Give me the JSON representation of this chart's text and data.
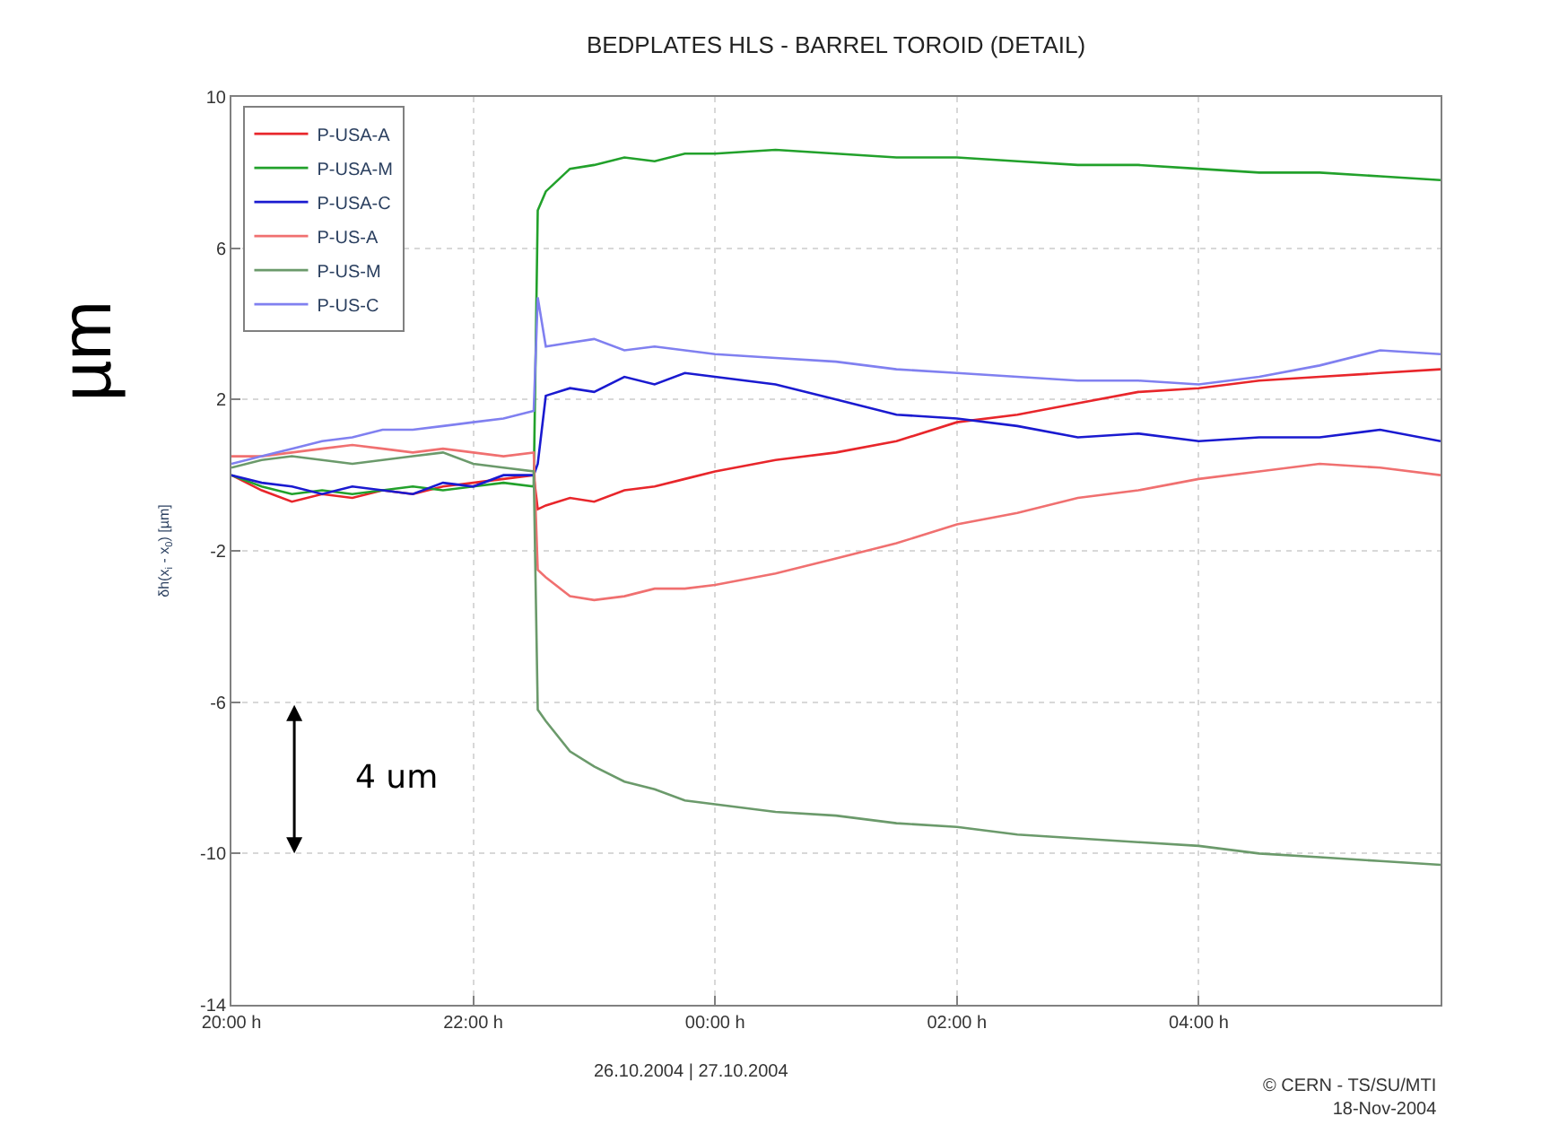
{
  "chart_data": {
    "type": "line",
    "title": "BEDPLATES HLS - BARREL TOROID (DETAIL)",
    "ylabel": "δh(x$_{i}$ - x$_{0}$) [µm]",
    "x": [
      "2004-10-26T20:00",
      "2004-10-26T20:15",
      "2004-10-26T20:30",
      "2004-10-26T20:45",
      "2004-10-26T21:00",
      "2004-10-26T21:15",
      "2004-10-26T21:30",
      "2004-10-26T21:45",
      "2004-10-26T22:00",
      "2004-10-26T22:15",
      "2004-10-26T22:30",
      "2004-10-26T22:32",
      "2004-10-26T22:36",
      "2004-10-26T22:48",
      "2004-10-26T23:00",
      "2004-10-26T23:15",
      "2004-10-26T23:30",
      "2004-10-26T23:45",
      "2004-10-27T00:00",
      "2004-10-27T00:30",
      "2004-10-27T01:00",
      "2004-10-27T01:30",
      "2004-10-27T02:00",
      "2004-10-27T02:30",
      "2004-10-27T03:00",
      "2004-10-27T03:30",
      "2004-10-27T04:00",
      "2004-10-27T04:30",
      "2004-10-27T05:00",
      "2004-10-27T05:30",
      "2004-10-27T06:00"
    ],
    "series": [
      {
        "name": "P-USA-A",
        "color": "#e8262b",
        "values": [
          0,
          -0.4,
          -0.7,
          -0.5,
          -0.6,
          -0.4,
          -0.5,
          -0.3,
          -0.2,
          -0.1,
          0,
          -0.9,
          -0.8,
          -0.6,
          -0.7,
          -0.4,
          -0.3,
          -0.1,
          0.1,
          0.4,
          0.6,
          0.9,
          1.4,
          1.6,
          1.9,
          2.2,
          2.3,
          2.5,
          2.6,
          2.7,
          2.8
        ]
      },
      {
        "name": "P-USA-M",
        "color": "#22a12b",
        "values": [
          0,
          -0.3,
          -0.5,
          -0.4,
          -0.5,
          -0.4,
          -0.3,
          -0.4,
          -0.3,
          -0.2,
          -0.3,
          7,
          7.5,
          8.1,
          8.2,
          8.4,
          8.3,
          8.5,
          8.5,
          8.6,
          8.5,
          8.4,
          8.4,
          8.3,
          8.2,
          8.2,
          8.1,
          8.0,
          8.0,
          7.9,
          7.8
        ]
      },
      {
        "name": "P-USA-C",
        "color": "#1a1ad0",
        "values": [
          0,
          -0.2,
          -0.3,
          -0.5,
          -0.3,
          -0.4,
          -0.5,
          -0.2,
          -0.3,
          0,
          0,
          0.3,
          2.1,
          2.3,
          2.2,
          2.6,
          2.4,
          2.7,
          2.6,
          2.4,
          2.0,
          1.6,
          1.5,
          1.3,
          1.0,
          1.1,
          0.9,
          1.0,
          1.0,
          1.2,
          0.9
        ]
      },
      {
        "name": "P-US-A",
        "color": "#f07070",
        "values": [
          0.5,
          0.5,
          0.6,
          0.7,
          0.8,
          0.7,
          0.6,
          0.7,
          0.6,
          0.5,
          0.6,
          -2.5,
          -2.7,
          -3.2,
          -3.3,
          -3.2,
          -3.0,
          -3.0,
          -2.9,
          -2.6,
          -2.2,
          -1.8,
          -1.3,
          -1.0,
          -0.6,
          -0.4,
          -0.1,
          0.1,
          0.3,
          0.2,
          0
        ]
      },
      {
        "name": "P-US-M",
        "color": "#6b9a6b",
        "values": [
          0.2,
          0.4,
          0.5,
          0.4,
          0.3,
          0.4,
          0.5,
          0.6,
          0.3,
          0.2,
          0.1,
          -6.2,
          -6.5,
          -7.3,
          -7.7,
          -8.1,
          -8.3,
          -8.6,
          -8.7,
          -8.9,
          -9.0,
          -9.2,
          -9.3,
          -9.5,
          -9.6,
          -9.7,
          -9.8,
          -10.0,
          -10.1,
          -10.2,
          -10.3
        ]
      },
      {
        "name": "P-US-C",
        "color": "#8080f0",
        "values": [
          0.3,
          0.5,
          0.7,
          0.9,
          1.0,
          1.2,
          1.2,
          1.3,
          1.4,
          1.5,
          1.7,
          4.7,
          3.4,
          3.5,
          3.6,
          3.3,
          3.4,
          3.3,
          3.2,
          3.1,
          3.0,
          2.8,
          2.7,
          2.6,
          2.5,
          2.5,
          2.4,
          2.6,
          2.9,
          3.3,
          3.2
        ]
      }
    ],
    "xlim": [
      "2004-10-26T20:00",
      "2004-10-27T06:00"
    ],
    "xticks": [
      {
        "value": "2004-10-26T20:00",
        "label": "20:00 h"
      },
      {
        "value": "2004-10-26T22:00",
        "label": "22:00 h"
      },
      {
        "value": "2004-10-27T00:00",
        "label": "00:00 h"
      },
      {
        "value": "2004-10-27T02:00",
        "label": "02:00 h"
      },
      {
        "value": "2004-10-27T04:00",
        "label": "04:00 h"
      }
    ],
    "ylim": [
      -14,
      10
    ],
    "yticks": [
      -14,
      -10,
      -6,
      -2,
      2,
      6,
      10
    ],
    "grid": true,
    "legend": "top left",
    "marker": "none",
    "line_style": "solid",
    "annotations": [
      "µm",
      "4 um",
      "26.10.2004 | 27.10.2004",
      "© CERN - TS/SU/MTI\n18-Nov-2004"
    ]
  }
}
